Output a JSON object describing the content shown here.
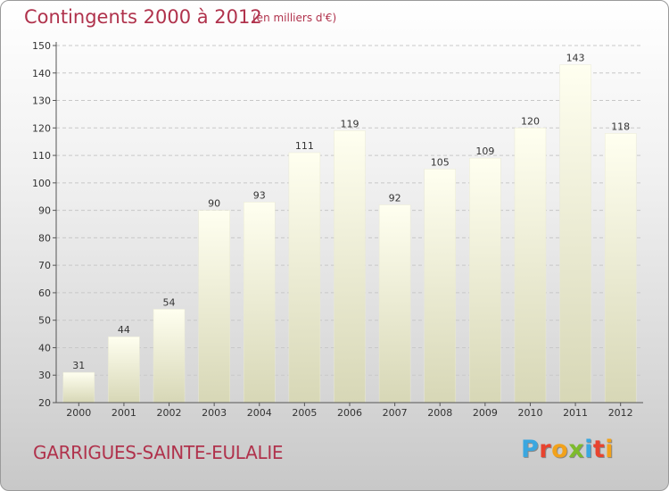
{
  "header": {
    "title": "Contingents 2000 à 2012",
    "subtitle": "(en milliers d'€)"
  },
  "footer": {
    "commune": "GARRIGUES-SAINTE-EULALIE",
    "brand_letters": [
      "P",
      "r",
      "o",
      "x",
      "i",
      "t",
      "i"
    ],
    "brand_colors": [
      "#3aa7e0",
      "#e8432e",
      "#f2a21b",
      "#7dbb2c",
      "#3aa7e0",
      "#e8432e",
      "#f2a21b"
    ]
  },
  "colors": {
    "accent_text": "#b0324c",
    "bar_top": "#fffff0",
    "bar_bottom": "#d7d7b6"
  },
  "chart_data": {
    "type": "bar",
    "title": "Contingents 2000 à 2012",
    "subtitle": "(en milliers d'€)",
    "categories": [
      "2000",
      "2001",
      "2002",
      "2003",
      "2004",
      "2005",
      "2006",
      "2007",
      "2008",
      "2009",
      "2010",
      "2011",
      "2012"
    ],
    "values": [
      31,
      44,
      54,
      90,
      93,
      111,
      119,
      92,
      105,
      109,
      120,
      143,
      118
    ],
    "ylim": [
      20,
      150
    ],
    "yticks": [
      20,
      30,
      40,
      50,
      60,
      70,
      80,
      90,
      100,
      110,
      120,
      130,
      140,
      150
    ],
    "grid": true,
    "legend": "none"
  }
}
